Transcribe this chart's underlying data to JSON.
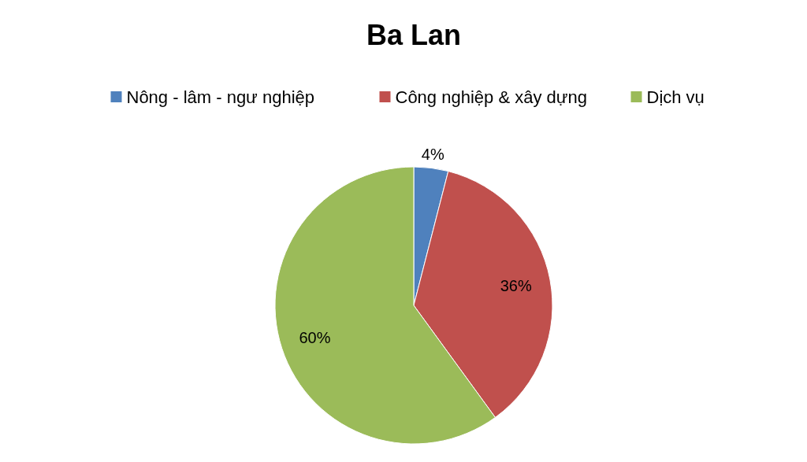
{
  "chart_data": {
    "type": "pie",
    "title": "Ba Lan",
    "categories": [
      "Nông  - lâm - ngư nghiệp",
      "Công nghiệp & xây dựng",
      "Dịch vụ"
    ],
    "values": [
      4,
      36,
      60
    ],
    "colors": [
      "#4f81bd",
      "#c0504d",
      "#9bbb59"
    ],
    "value_labels": [
      "4%",
      "36%",
      "60%"
    ],
    "legend": "top"
  }
}
